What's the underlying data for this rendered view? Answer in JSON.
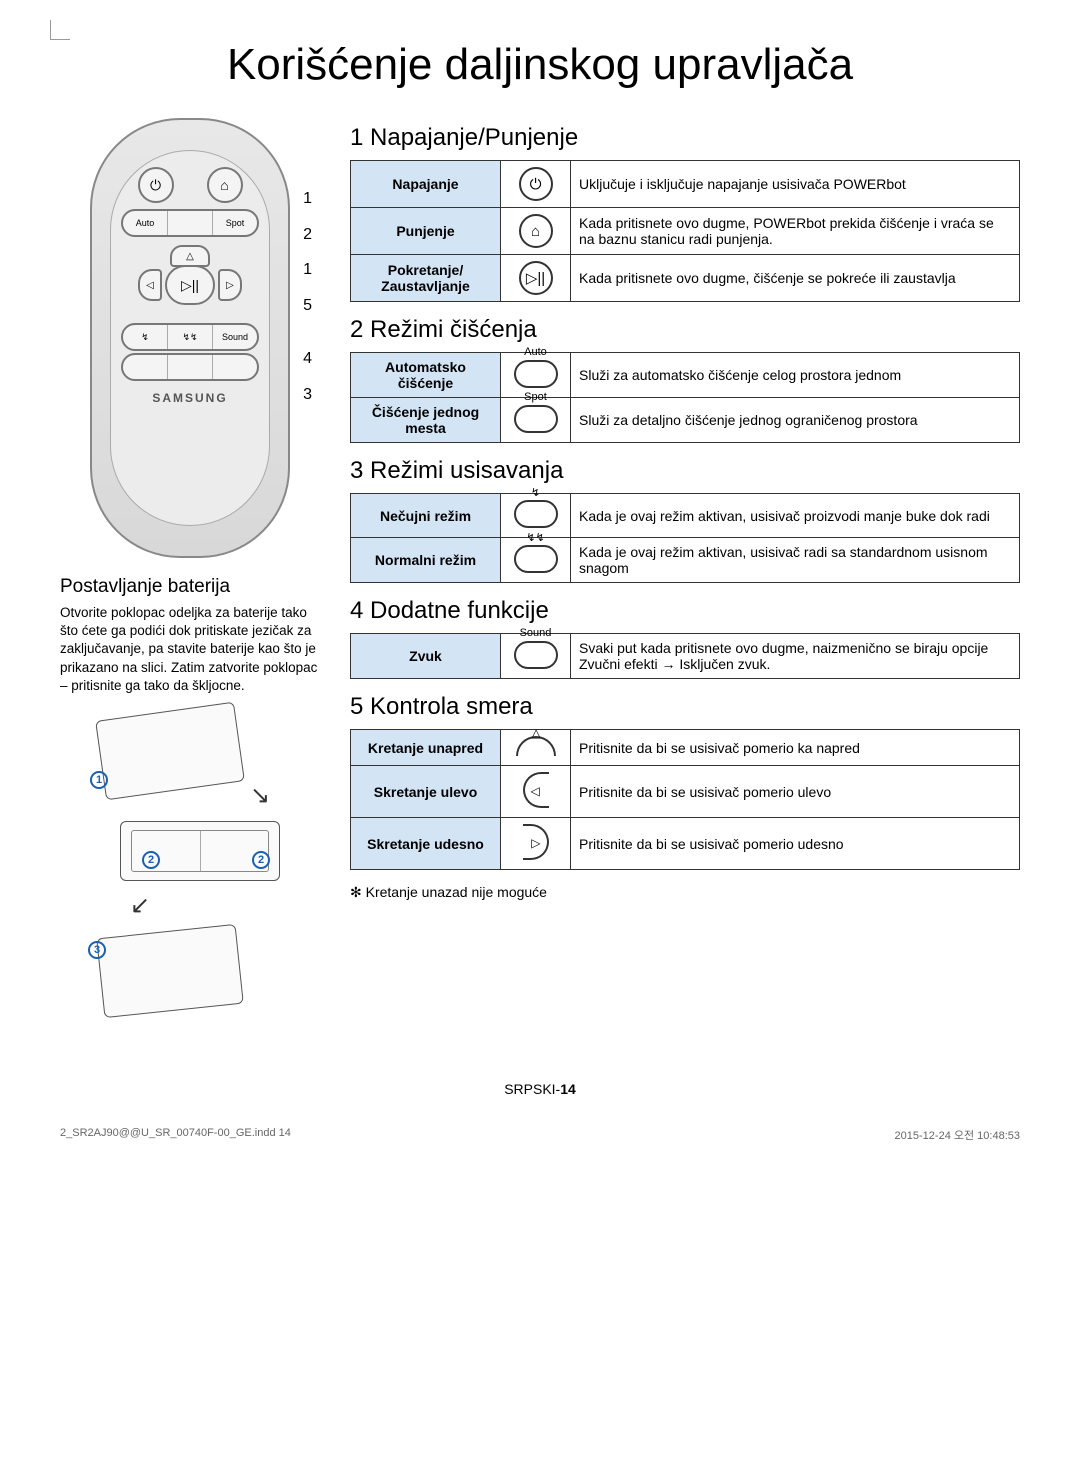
{
  "page_title": "Korišćenje daljinskog upravljača",
  "remote": {
    "auto_label": "Auto",
    "spot_label": "Spot",
    "sound_label": "Sound",
    "brand": "SAMSUNG",
    "callouts": [
      "1",
      "2",
      "1",
      "5",
      "4",
      "3"
    ]
  },
  "battery": {
    "title": "Postavljanje baterija",
    "text": "Otvorite poklopac odeljka za baterije tako što ćete ga podići dok pritiskate jezičak za zaključavanje, pa stavite baterije kao što je prikazano na slici. Zatim zatvorite poklopac – pritisnite ga tako da škljocne.",
    "badges": [
      "1",
      "2",
      "2",
      "3"
    ]
  },
  "sections": [
    {
      "heading": "1 Napajanje/Punjenje",
      "rows": [
        {
          "label": "Napajanje",
          "icon": "power",
          "desc": "Uključuje i isključuje napajanje usisivača POWERbot"
        },
        {
          "label": "Punjenje",
          "icon": "home",
          "desc": "Kada pritisnete ovo dugme, POWERbot prekida čišćenje i vraća se na baznu stanicu radi punjenja."
        },
        {
          "label": "Pokretanje/\nZaustavljanje",
          "icon": "playpause",
          "desc": "Kada pritisnete ovo dugme, čišćenje se pokreće ili zaustavlja"
        }
      ]
    },
    {
      "heading": "2 Režimi čišćenja",
      "rows": [
        {
          "label": "Automatsko čišćenje",
          "icon": "pill",
          "top": "Auto",
          "desc": "Služi za automatsko čišćenje celog prostora jednom"
        },
        {
          "label": "Čišćenje jednog mesta",
          "icon": "pill",
          "top": "Spot",
          "desc": "Služi za detaljno čišćenje jednog ograničenog prostora"
        }
      ]
    },
    {
      "heading": "3 Režimi usisavanja",
      "rows": [
        {
          "label": "Nečujni režim",
          "icon": "pill",
          "top": "↯",
          "desc": "Kada je ovaj režim aktivan, usisivač proizvodi manje buke dok radi"
        },
        {
          "label": "Normalni režim",
          "icon": "pill",
          "top": "↯↯",
          "desc": "Kada je ovaj režim aktivan, usisivač radi sa standardnom usisnom snagom"
        }
      ]
    },
    {
      "heading": "4 Dodatne funkcije",
      "rows": [
        {
          "label": "Zvuk",
          "icon": "pill",
          "top": "Sound",
          "desc": "Svaki put kada pritisnete ovo dugme, naizmenično se biraju opcije Zvučni efekti → Isključen zvuk."
        }
      ]
    },
    {
      "heading": "5 Kontrola smera",
      "rows": [
        {
          "label": "Kretanje unapred",
          "icon": "arc-up",
          "desc": "Pritisnite da bi se usisivač pomerio ka napred"
        },
        {
          "label": "Skretanje ulevo",
          "icon": "arc-left",
          "desc": "Pritisnite da bi se usisivač pomerio ulevo"
        },
        {
          "label": "Skretanje udesno",
          "icon": "arc-right",
          "desc": "Pritisnite da bi se usisivač pomerio udesno"
        }
      ],
      "note": "Kretanje unazad nije moguće"
    }
  ],
  "footer": {
    "lang": "SRPSKI-",
    "page": "14"
  },
  "meta": {
    "file": "2_SR2AJ90@@U_SR_00740F-00_GE.indd   14",
    "date": "2015-12-24   오전 10:48:53"
  },
  "colors": {
    "header_bg": "#d3e4f5",
    "border": "#333333",
    "accent": "#1a5fb4"
  }
}
